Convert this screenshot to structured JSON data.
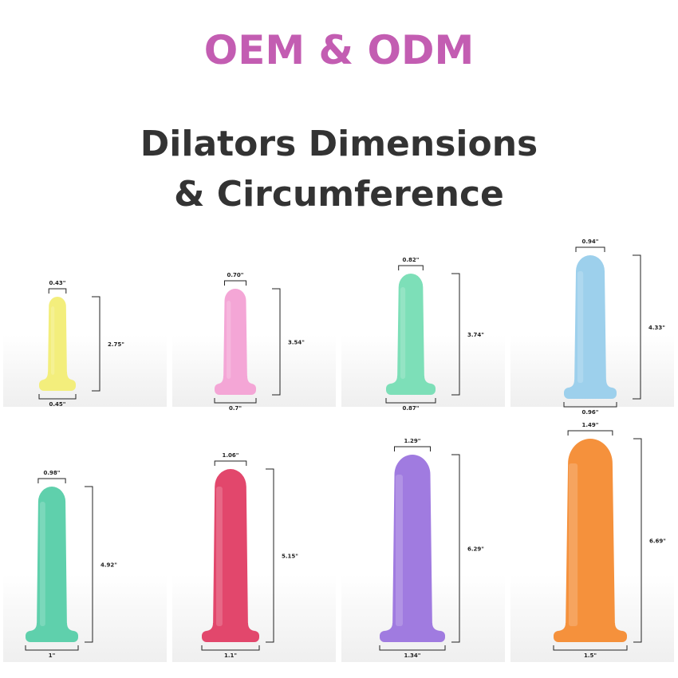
{
  "header": {
    "title": "OEM & ODM",
    "subtitle": [
      "Dilators Dimensions",
      "& Circumference"
    ]
  },
  "products": [
    {
      "tip": "0.43\"",
      "length": "2.75\"",
      "base": "0.45\"",
      "color": "#f3ee7c"
    },
    {
      "tip": "0.70\"",
      "length": "3.54\"",
      "base": "0.7\"",
      "color": "#f4a6d6"
    },
    {
      "tip": "0.82\"",
      "length": "3.74\"",
      "base": "0.87\"",
      "color": "#7ddfb8"
    },
    {
      "tip": "0.94\"",
      "length": "4.33\"",
      "base": "0.96\"",
      "color": "#9dd0ec"
    },
    {
      "tip": "0.98\"",
      "length": "4.92\"",
      "base": "1\"",
      "color": "#5fd0ac"
    },
    {
      "tip": "1.06\"",
      "length": "5.15\"",
      "base": "1.1\"",
      "color": "#e2476c"
    },
    {
      "tip": "1.29\"",
      "length": "6.29\"",
      "base": "1.34\"",
      "color": "#a07be0"
    },
    {
      "tip": "1.49\"",
      "length": "6.69\"",
      "base": "1.5\"",
      "color": "#f5913c"
    }
  ]
}
